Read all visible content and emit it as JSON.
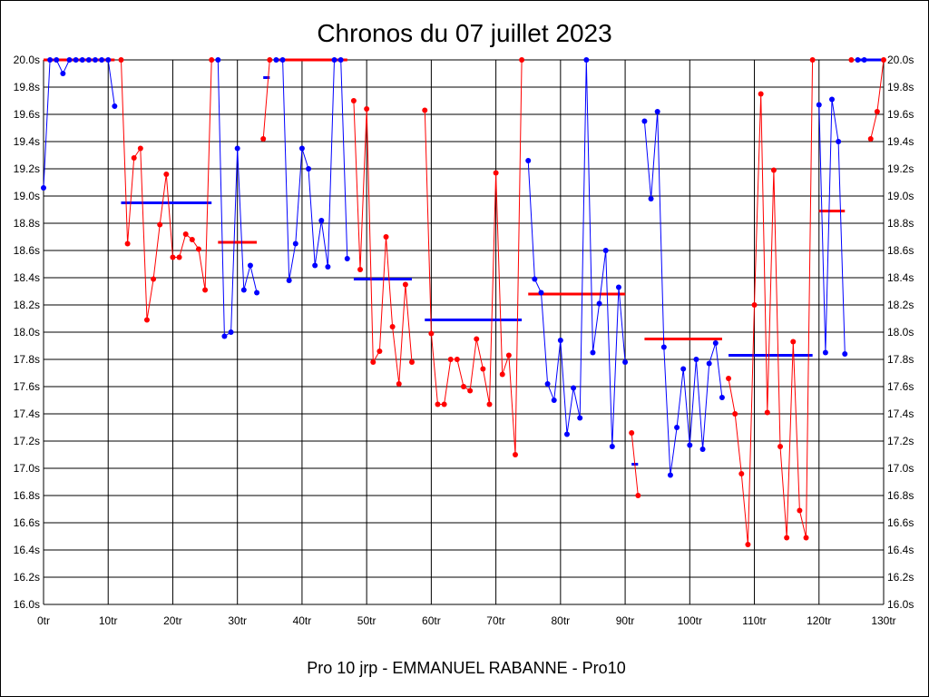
{
  "chart_data": {
    "type": "line",
    "title": "Chronos du 07 juillet 2023",
    "subtitle": "Pro 10 jrp - EMMANUEL RABANNE - Pro10",
    "x_ticks": [
      "0tr",
      "10tr",
      "20tr",
      "30tr",
      "40tr",
      "50tr",
      "60tr",
      "70tr",
      "80tr",
      "90tr",
      "100tr",
      "110tr",
      "120tr",
      "130tr"
    ],
    "y_ticks": [
      "16.0s",
      "16.2s",
      "16.4s",
      "16.6s",
      "16.8s",
      "17.0s",
      "17.2s",
      "17.4s",
      "17.6s",
      "17.8s",
      "18.0s",
      "18.2s",
      "18.4s",
      "18.6s",
      "18.8s",
      "19.0s",
      "19.2s",
      "19.4s",
      "19.6s",
      "19.8s",
      "20.0s"
    ],
    "xlim": [
      0,
      130
    ],
    "ylim": [
      16.0,
      20.0
    ],
    "grid": true,
    "colors": {
      "red": "#ff0000",
      "blue": "#0000ff"
    },
    "segments": [
      {
        "color": "blue",
        "points": [
          [
            0,
            19.06
          ],
          [
            1,
            20.0
          ],
          [
            2,
            20.0
          ],
          [
            3,
            19.9
          ],
          [
            4,
            20.0
          ],
          [
            5,
            20.0
          ],
          [
            6,
            20.0
          ],
          [
            7,
            20.0
          ],
          [
            8,
            20.0
          ],
          [
            9,
            20.0
          ],
          [
            10,
            20.0
          ],
          [
            11,
            19.66
          ]
        ]
      },
      {
        "color": "red",
        "points": [
          [
            12,
            20.0
          ],
          [
            13,
            18.65
          ],
          [
            14,
            19.28
          ],
          [
            15,
            19.35
          ],
          [
            16,
            18.09
          ],
          [
            17,
            18.39
          ],
          [
            18,
            18.79
          ],
          [
            19,
            19.16
          ],
          [
            20,
            18.55
          ],
          [
            21,
            18.55
          ],
          [
            22,
            18.72
          ],
          [
            23,
            18.68
          ],
          [
            24,
            18.61
          ],
          [
            25,
            18.31
          ],
          [
            26,
            20.0
          ]
        ]
      },
      {
        "color": "blue",
        "points": [
          [
            27,
            20.0
          ],
          [
            28,
            17.97
          ],
          [
            29,
            18.0
          ],
          [
            30,
            19.35
          ],
          [
            31,
            18.31
          ],
          [
            32,
            18.49
          ],
          [
            33,
            18.29
          ]
        ]
      },
      {
        "color": "red",
        "points": [
          [
            34,
            19.42
          ],
          [
            35,
            20.0
          ]
        ]
      },
      {
        "color": "blue",
        "points": [
          [
            36,
            20.0
          ],
          [
            37,
            20.0
          ],
          [
            38,
            18.38
          ],
          [
            39,
            18.65
          ],
          [
            40,
            19.35
          ],
          [
            41,
            19.2
          ],
          [
            42,
            18.49
          ],
          [
            43,
            18.82
          ],
          [
            44,
            18.48
          ],
          [
            45,
            20.0
          ],
          [
            46,
            20.0
          ],
          [
            47,
            18.54
          ]
        ]
      },
      {
        "color": "red",
        "points": [
          [
            48,
            19.7
          ],
          [
            49,
            18.46
          ],
          [
            50,
            19.64
          ],
          [
            51,
            17.78
          ],
          [
            52,
            17.86
          ],
          [
            53,
            18.7
          ],
          [
            54,
            18.04
          ],
          [
            55,
            17.62
          ],
          [
            56,
            18.35
          ],
          [
            57,
            17.78
          ]
        ]
      },
      {
        "color": "red",
        "points": [
          [
            59,
            19.63
          ],
          [
            60,
            17.99
          ],
          [
            61,
            17.47
          ],
          [
            62,
            17.47
          ],
          [
            63,
            17.8
          ],
          [
            64,
            17.8
          ],
          [
            65,
            17.6
          ],
          [
            66,
            17.57
          ],
          [
            67,
            17.95
          ],
          [
            68,
            17.73
          ],
          [
            69,
            17.47
          ],
          [
            70,
            19.17
          ],
          [
            71,
            17.69
          ],
          [
            72,
            17.83
          ],
          [
            73,
            17.1
          ],
          [
            74,
            20.0
          ]
        ]
      },
      {
        "color": "blue",
        "points": [
          [
            75,
            19.26
          ],
          [
            76,
            18.39
          ],
          [
            77,
            18.29
          ],
          [
            78,
            17.62
          ],
          [
            79,
            17.5
          ],
          [
            80,
            17.94
          ],
          [
            81,
            17.25
          ],
          [
            82,
            17.59
          ],
          [
            83,
            17.37
          ],
          [
            84,
            20.0
          ],
          [
            85,
            17.85
          ],
          [
            86,
            18.21
          ],
          [
            87,
            18.6
          ],
          [
            88,
            17.16
          ],
          [
            89,
            18.33
          ],
          [
            90,
            17.78
          ]
        ]
      },
      {
        "color": "red",
        "points": [
          [
            91,
            17.26
          ],
          [
            92,
            16.8
          ]
        ]
      },
      {
        "color": "blue",
        "points": [
          [
            93,
            19.55
          ],
          [
            94,
            18.98
          ],
          [
            95,
            19.62
          ],
          [
            96,
            17.89
          ],
          [
            97,
            16.95
          ],
          [
            98,
            17.3
          ],
          [
            99,
            17.73
          ],
          [
            100,
            17.17
          ],
          [
            101,
            17.8
          ],
          [
            102,
            17.14
          ],
          [
            103,
            17.77
          ],
          [
            104,
            17.92
          ],
          [
            105,
            17.52
          ]
        ]
      },
      {
        "color": "red",
        "points": [
          [
            106,
            17.66
          ],
          [
            107,
            17.4
          ],
          [
            108,
            16.96
          ],
          [
            109,
            16.44
          ],
          [
            110,
            18.2
          ],
          [
            111,
            19.75
          ],
          [
            112,
            17.41
          ],
          [
            113,
            19.19
          ],
          [
            114,
            17.16
          ],
          [
            115,
            16.49
          ],
          [
            116,
            17.93
          ],
          [
            117,
            16.69
          ],
          [
            118,
            16.49
          ],
          [
            119,
            20.0
          ]
        ]
      },
      {
        "color": "blue",
        "points": [
          [
            120,
            19.67
          ],
          [
            121,
            17.85
          ],
          [
            122,
            19.71
          ],
          [
            123,
            19.4
          ],
          [
            124,
            17.84
          ]
        ]
      },
      {
        "color": "red",
        "points": [
          [
            125,
            20.0
          ]
        ]
      },
      {
        "color": "blue",
        "points": [
          [
            126,
            20.0
          ],
          [
            127,
            20.0
          ]
        ]
      },
      {
        "color": "red",
        "points": [
          [
            128,
            19.42
          ],
          [
            129,
            19.62
          ],
          [
            130,
            20.0
          ]
        ]
      }
    ],
    "averages": [
      {
        "color": "red",
        "x0": 0,
        "x1": 11,
        "y": 20.0
      },
      {
        "color": "blue",
        "x0": 12,
        "x1": 26,
        "y": 18.95
      },
      {
        "color": "red",
        "x0": 27,
        "x1": 33,
        "y": 18.66
      },
      {
        "color": "blue",
        "x0": 34,
        "x1": 35,
        "y": 19.87
      },
      {
        "color": "red",
        "x0": 36,
        "x1": 47,
        "y": 20.0
      },
      {
        "color": "blue",
        "x0": 48,
        "x1": 57,
        "y": 18.39
      },
      {
        "color": "blue",
        "x0": 59,
        "x1": 74,
        "y": 18.09
      },
      {
        "color": "red",
        "x0": 75,
        "x1": 90,
        "y": 18.28
      },
      {
        "color": "blue",
        "x0": 91,
        "x1": 92,
        "y": 17.03
      },
      {
        "color": "red",
        "x0": 93,
        "x1": 105,
        "y": 17.95
      },
      {
        "color": "blue",
        "x0": 106,
        "x1": 119,
        "y": 17.83
      },
      {
        "color": "red",
        "x0": 120,
        "x1": 124,
        "y": 18.89
      },
      {
        "color": "blue",
        "x0": 126,
        "x1": 130,
        "y": 20.0
      }
    ]
  }
}
